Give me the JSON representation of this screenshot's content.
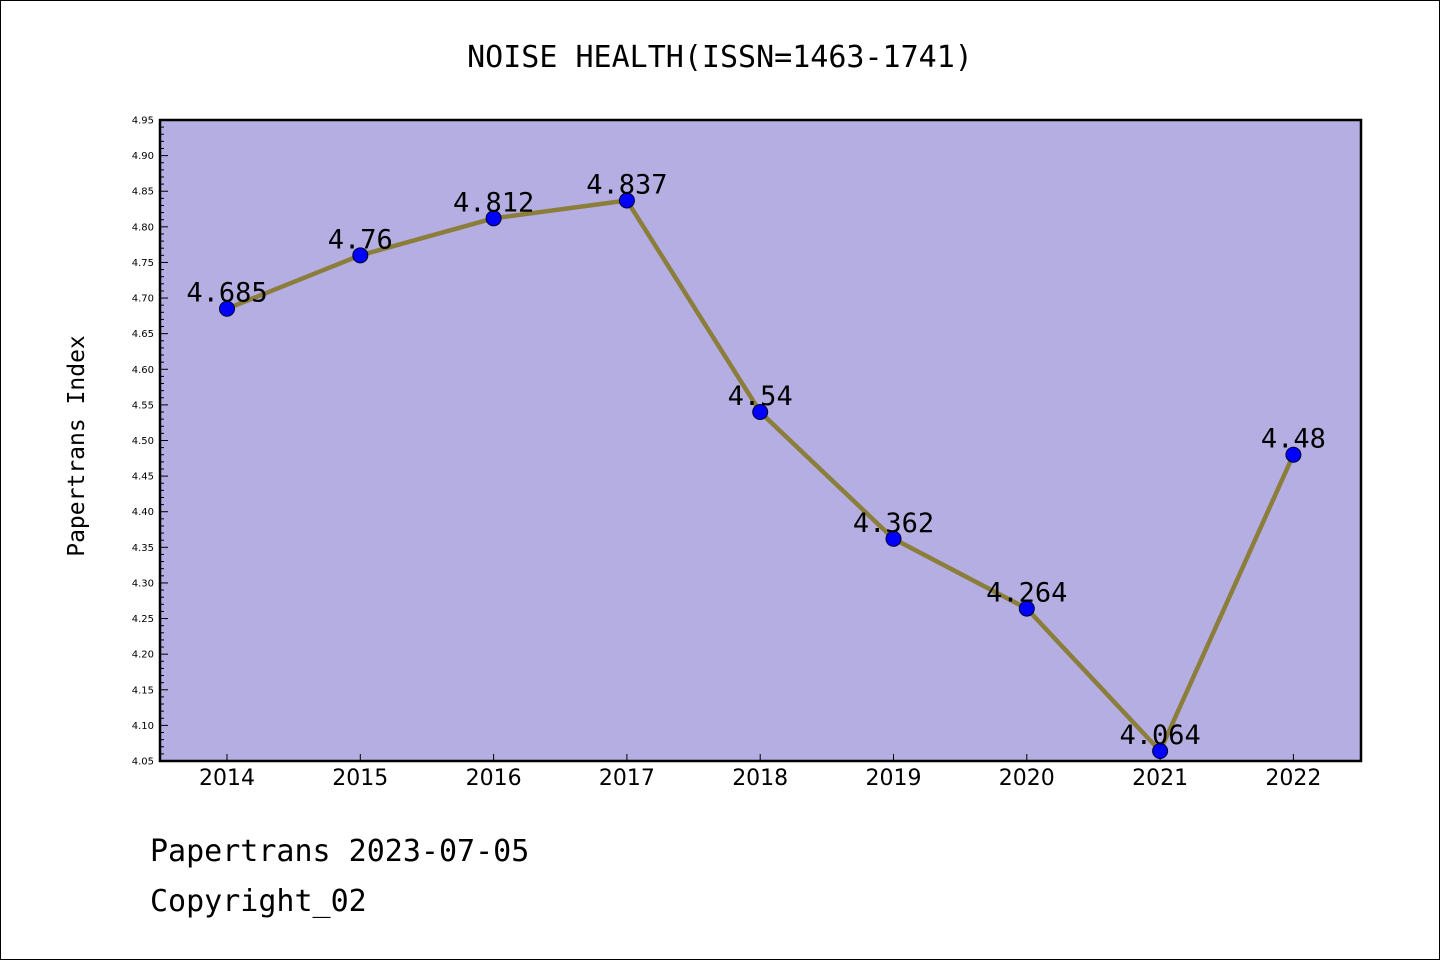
{
  "chart_data": {
    "type": "line",
    "title": "NOISE HEALTH(ISSN=1463-1741)",
    "xlabel": "",
    "ylabel": "Papertrans Index",
    "categories": [
      "2014",
      "2015",
      "2016",
      "2017",
      "2018",
      "2019",
      "2020",
      "2021",
      "2022"
    ],
    "values": [
      4.685,
      4.76,
      4.812,
      4.837,
      4.54,
      4.362,
      4.264,
      4.064,
      4.48
    ],
    "data_labels": [
      "4.685",
      "4.76",
      "4.812",
      "4.837",
      "4.54",
      "4.362",
      "4.264",
      "4.064",
      "4.48"
    ],
    "ylim": [
      4.05,
      4.95
    ],
    "yticks": [
      "4.05",
      "4.10",
      "4.15",
      "4.20",
      "4.25",
      "4.30",
      "4.35",
      "4.40",
      "4.45",
      "4.50",
      "4.55",
      "4.60",
      "4.65",
      "4.70",
      "4.75",
      "4.80",
      "4.85",
      "4.90",
      "4.95"
    ],
    "grid": false,
    "colors": {
      "plot_background": "#b5aee2",
      "line": "#8b7d3a",
      "marker": "#0000ff"
    }
  },
  "footer": {
    "line1": "Papertrans 2023-07-05",
    "line2": "Copyright_02"
  }
}
